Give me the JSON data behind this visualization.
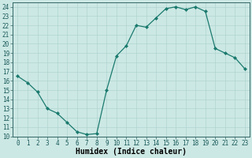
{
  "x": [
    0,
    1,
    2,
    3,
    4,
    5,
    6,
    7,
    8,
    9,
    10,
    11,
    12,
    13,
    14,
    15,
    16,
    17,
    18,
    19,
    20,
    21,
    22,
    23
  ],
  "y": [
    16.5,
    15.8,
    14.8,
    13.0,
    12.5,
    11.5,
    10.5,
    10.2,
    10.3,
    15.0,
    18.7,
    19.8,
    22.0,
    21.8,
    22.8,
    23.8,
    24.0,
    23.7,
    24.0,
    23.5,
    19.5,
    19.0,
    18.5,
    17.3
  ],
  "line_color": "#1a7a6e",
  "marker": "D",
  "markersize": 2,
  "bg_color": "#cce8e4",
  "grid_color": "#b0d4d0",
  "xlabel": "Humidex (Indice chaleur)",
  "xlim": [
    -0.5,
    23.5
  ],
  "ylim": [
    10,
    24.5
  ],
  "xticks": [
    0,
    1,
    2,
    3,
    4,
    5,
    6,
    7,
    8,
    9,
    10,
    11,
    12,
    13,
    14,
    15,
    16,
    17,
    18,
    19,
    20,
    21,
    22,
    23
  ],
  "yticks": [
    10,
    11,
    12,
    13,
    14,
    15,
    16,
    17,
    18,
    19,
    20,
    21,
    22,
    23,
    24
  ],
  "tick_fontsize": 5.5,
  "xlabel_fontsize": 7
}
